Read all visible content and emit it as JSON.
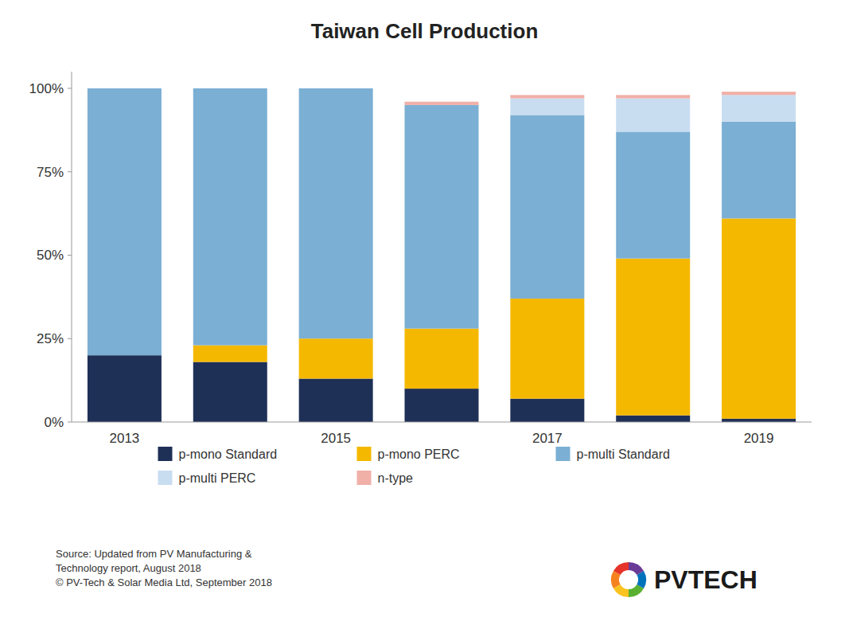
{
  "chart_data": {
    "type": "bar",
    "stacked": true,
    "title": "Taiwan Cell Production",
    "categories": [
      "2013",
      null,
      "2015",
      null,
      "2017",
      null,
      "2019"
    ],
    "series": [
      {
        "name": "p-mono Standard",
        "color": "#1f3057",
        "values": [
          20,
          18,
          13,
          10,
          7,
          2,
          1
        ]
      },
      {
        "name": "p-mono PERC",
        "color": "#f5b800",
        "values": [
          0,
          5,
          12,
          18,
          30,
          47,
          60
        ]
      },
      {
        "name": "p-multi Standard",
        "color": "#7bafd4",
        "values": [
          80,
          77,
          75,
          67,
          55,
          38,
          29
        ]
      },
      {
        "name": "p-multi PERC",
        "color": "#c9ddf0",
        "values": [
          0,
          0,
          0,
          0,
          5,
          10,
          8
        ]
      },
      {
        "name": "n-type",
        "color": "#f0b0a8",
        "values": [
          0,
          0,
          0,
          1,
          1,
          1,
          1
        ]
      }
    ],
    "ylim": [
      0,
      105
    ],
    "yticks": [
      {
        "value": 0,
        "label": "0%"
      },
      {
        "value": 25,
        "label": "25%"
      },
      {
        "value": 50,
        "label": "50%"
      },
      {
        "value": 75,
        "label": "75%"
      },
      {
        "value": 100,
        "label": "100%"
      }
    ],
    "grid": false,
    "legend": "bottom",
    "annotations": [
      "Source: Updated from PV Manufacturing &\nTechnology report, August 2018\n© PV-Tech & Solar Media Ltd, September 2018",
      "PVTECH"
    ]
  }
}
